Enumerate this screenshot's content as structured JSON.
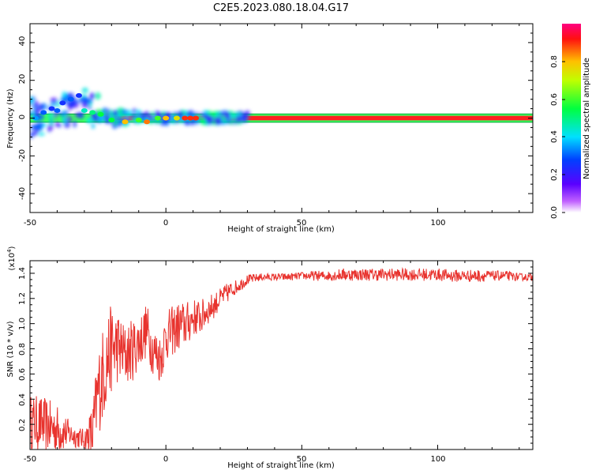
{
  "figure_title": "C2E5.2023.080.18.04.G17",
  "chart_data": [
    {
      "type": "heatmap",
      "title": "",
      "xlabel": "Height of straight line (km)",
      "ylabel": "Frequency (Hz)",
      "xlim": [
        -50,
        135
      ],
      "ylim": [
        -50,
        50
      ],
      "xticks": [
        "-50",
        "0",
        "50",
        "100"
      ],
      "yticks": [
        "-40",
        "-20",
        "0",
        "20",
        "40"
      ],
      "grid": false,
      "colorbar": {
        "label": "Normalized spectral amplitude",
        "range": [
          0,
          1
        ],
        "ticks": [
          "0.0",
          "0.2",
          "0.4",
          "0.6",
          "0.8"
        ],
        "colormap": "rainbow (white-purple-blue-cyan-green-yellow-red-magenta)"
      },
      "description_points": [
        {
          "x": -48,
          "y": 0,
          "v": 0.35
        },
        {
          "x": -45,
          "y": 3,
          "v": 0.3
        },
        {
          "x": -42,
          "y": 5,
          "v": 0.25
        },
        {
          "x": -40,
          "y": 4,
          "v": 0.3
        },
        {
          "x": -38,
          "y": 8,
          "v": 0.25
        },
        {
          "x": -35,
          "y": 10,
          "v": 0.3
        },
        {
          "x": -32,
          "y": 12,
          "v": 0.25
        },
        {
          "x": -30,
          "y": 4,
          "v": 0.45
        },
        {
          "x": -27,
          "y": 3,
          "v": 0.5
        },
        {
          "x": -24,
          "y": 2,
          "v": 0.55
        },
        {
          "x": -20,
          "y": -1,
          "v": 0.55
        },
        {
          "x": -15,
          "y": -2,
          "v": 0.8
        },
        {
          "x": -10,
          "y": -1,
          "v": 0.6
        },
        {
          "x": -7,
          "y": -2,
          "v": 0.85
        },
        {
          "x": -3,
          "y": 0,
          "v": 0.6
        },
        {
          "x": 0,
          "y": 0,
          "v": 0.8
        },
        {
          "x": 4,
          "y": 0,
          "v": 0.75
        },
        {
          "x": 7,
          "y": 0,
          "v": 0.9
        },
        {
          "x": 9,
          "y": 0,
          "v": 0.9
        },
        {
          "x": 11,
          "y": 0,
          "v": 0.9
        }
      ]
    },
    {
      "type": "line",
      "title": "",
      "xlabel": "Height of straight line (km)",
      "ylabel": "SNR (10 * v/v)",
      "y_multiplier_label": "(x10",
      "y_multiplier_exp": "4",
      "y_multiplier_close": ")",
      "xlim": [
        -50,
        135
      ],
      "ylim": [
        0,
        1.5
      ],
      "xticks": [
        "-50",
        "0",
        "50",
        "100"
      ],
      "yticks": [
        "0.2",
        "0.4",
        "0.6",
        "0.8",
        "1.0",
        "1.2",
        "1.4"
      ],
      "grid": false,
      "series": [
        {
          "color": "#e8332e",
          "x": [
            -50,
            -45,
            -40,
            -35,
            -30,
            -27,
            -25,
            -22,
            -20,
            -18,
            -15,
            -12,
            -10,
            -7,
            -5,
            -2,
            0,
            3,
            5,
            8,
            10,
            13,
            15,
            18,
            20,
            23,
            25,
            28,
            30,
            35,
            40,
            45,
            50,
            55,
            60,
            65,
            70,
            75,
            80,
            85,
            90,
            95,
            100,
            105,
            110,
            115,
            120,
            125,
            130,
            135
          ],
          "y": [
            0.22,
            0.2,
            0.16,
            0.12,
            0.08,
            0.12,
            0.45,
            0.7,
            0.8,
            0.82,
            0.75,
            0.8,
            0.85,
            0.95,
            0.8,
            0.72,
            0.9,
            0.95,
            0.98,
            1.0,
            1.05,
            1.05,
            1.1,
            1.15,
            1.2,
            1.25,
            1.28,
            1.32,
            1.35,
            1.37,
            1.37,
            1.37,
            1.38,
            1.38,
            1.38,
            1.39,
            1.39,
            1.39,
            1.39,
            1.39,
            1.39,
            1.39,
            1.39,
            1.38,
            1.38,
            1.38,
            1.38,
            1.38,
            1.37,
            1.37
          ],
          "noise": [
            0.22,
            0.22,
            0.2,
            0.1,
            0.08,
            0.25,
            0.35,
            0.4,
            0.35,
            0.3,
            0.25,
            0.25,
            0.22,
            0.22,
            0.2,
            0.2,
            0.2,
            0.2,
            0.2,
            0.18,
            0.15,
            0.14,
            0.12,
            0.1,
            0.08,
            0.08,
            0.06,
            0.05,
            0.04,
            0.03,
            0.03,
            0.03,
            0.03,
            0.04,
            0.04,
            0.05,
            0.05,
            0.05,
            0.05,
            0.05,
            0.05,
            0.05,
            0.05,
            0.05,
            0.05,
            0.05,
            0.04,
            0.04,
            0.03,
            0.03
          ]
        }
      ]
    }
  ]
}
